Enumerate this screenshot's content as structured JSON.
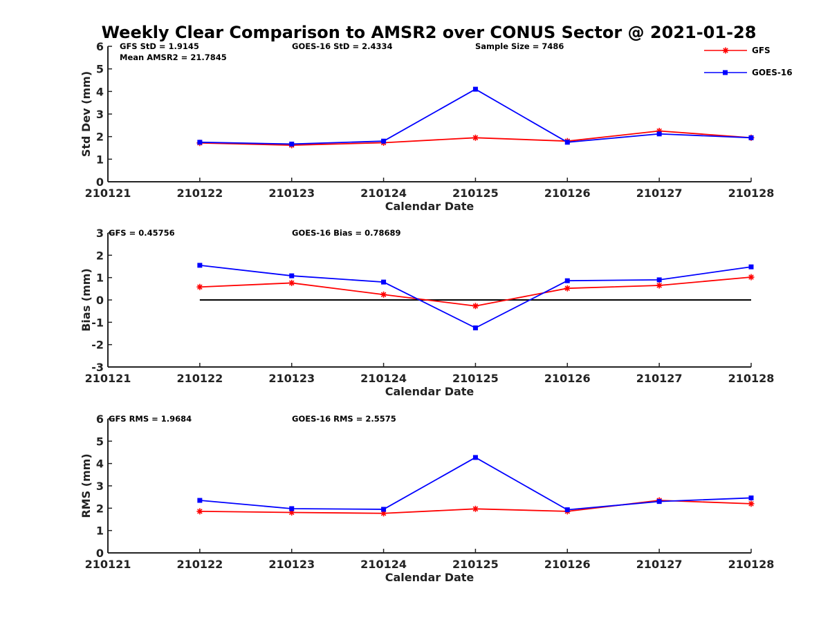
{
  "figure": {
    "title": "Weekly Clear Comparison to AMSR2 over CONUS Sector @ 2021-01-28"
  },
  "legend": [
    {
      "name": "GFS",
      "color": "#ff0000",
      "marker": "asterisk"
    },
    {
      "name": "GOES-16",
      "color": "#0000ff",
      "marker": "square"
    }
  ],
  "chart_data": [
    {
      "type": "line",
      "xlabel": "Calendar Date",
      "ylabel": "Std Dev (mm)",
      "x_tick_labels": [
        "210121",
        "210122",
        "210123",
        "210124",
        "210125",
        "210126",
        "210127",
        "210128"
      ],
      "xlim": [
        "210121",
        "210128"
      ],
      "ylim": [
        0,
        6
      ],
      "yticks": [
        "0",
        "1",
        "2",
        "3",
        "4",
        "5",
        "6"
      ],
      "categories": [
        "210122",
        "210123",
        "210124",
        "210125",
        "210126",
        "210127",
        "210128"
      ],
      "series": [
        {
          "name": "GFS",
          "color": "#ff0000",
          "values": [
            1.72,
            1.62,
            1.73,
            1.95,
            1.8,
            2.25,
            1.95
          ]
        },
        {
          "name": "GOES-16",
          "color": "#0000ff",
          "values": [
            1.75,
            1.67,
            1.8,
            4.1,
            1.75,
            2.12,
            1.95
          ]
        }
      ],
      "annotations": [
        {
          "text": "GFS StD = 1.9145",
          "align": "left"
        },
        {
          "text": "Mean AMSR2 = 21.7845",
          "align": "left-second-line"
        },
        {
          "text": "GOES-16 StD = 2.4334",
          "align": "center-left"
        },
        {
          "text": "Sample Size = 7486",
          "align": "center-right"
        }
      ],
      "legend": "top-right",
      "grid": false
    },
    {
      "type": "line",
      "xlabel": "Calendar Date",
      "ylabel": "Bias (mm)",
      "x_tick_labels": [
        "210121",
        "210122",
        "210123",
        "210124",
        "210125",
        "210126",
        "210127",
        "210128"
      ],
      "xlim": [
        "210121",
        "210128"
      ],
      "ylim": [
        -3,
        3
      ],
      "yticks": [
        "-3",
        "-2",
        "-1",
        "0",
        "1",
        "2",
        "3"
      ],
      "categories": [
        "210122",
        "210123",
        "210124",
        "210125",
        "210126",
        "210127",
        "210128"
      ],
      "reference_line": 0,
      "series": [
        {
          "name": "GFS",
          "color": "#ff0000",
          "values": [
            0.58,
            0.76,
            0.24,
            -0.27,
            0.52,
            0.65,
            1.02
          ]
        },
        {
          "name": "GOES-16",
          "color": "#0000ff",
          "values": [
            1.55,
            1.08,
            0.8,
            -1.25,
            0.86,
            0.9,
            1.48
          ]
        }
      ],
      "annotations": [
        {
          "text": "GFS = 0.45756",
          "align": "left"
        },
        {
          "text": "GOES-16 Bias  = 0.78689",
          "align": "center-left"
        }
      ],
      "grid": false
    },
    {
      "type": "line",
      "xlabel": "Calendar Date",
      "ylabel": "RMS (mm)",
      "x_tick_labels": [
        "210121",
        "210122",
        "210123",
        "210124",
        "210125",
        "210126",
        "210127",
        "210128"
      ],
      "xlim": [
        "210121",
        "210128"
      ],
      "ylim": [
        0,
        6
      ],
      "yticks": [
        "0",
        "1",
        "2",
        "3",
        "4",
        "5",
        "6"
      ],
      "categories": [
        "210122",
        "210123",
        "210124",
        "210125",
        "210126",
        "210127",
        "210128"
      ],
      "series": [
        {
          "name": "GFS",
          "color": "#ff0000",
          "values": [
            1.86,
            1.81,
            1.77,
            1.97,
            1.86,
            2.35,
            2.2
          ]
        },
        {
          "name": "GOES-16",
          "color": "#0000ff",
          "values": [
            2.35,
            1.98,
            1.95,
            4.27,
            1.93,
            2.3,
            2.46
          ]
        }
      ],
      "annotations": [
        {
          "text": "GFS RMS = 1.9684",
          "align": "left"
        },
        {
          "text": "GOES-16 RMS = 2.5575",
          "align": "center-left"
        }
      ],
      "grid": false
    }
  ]
}
